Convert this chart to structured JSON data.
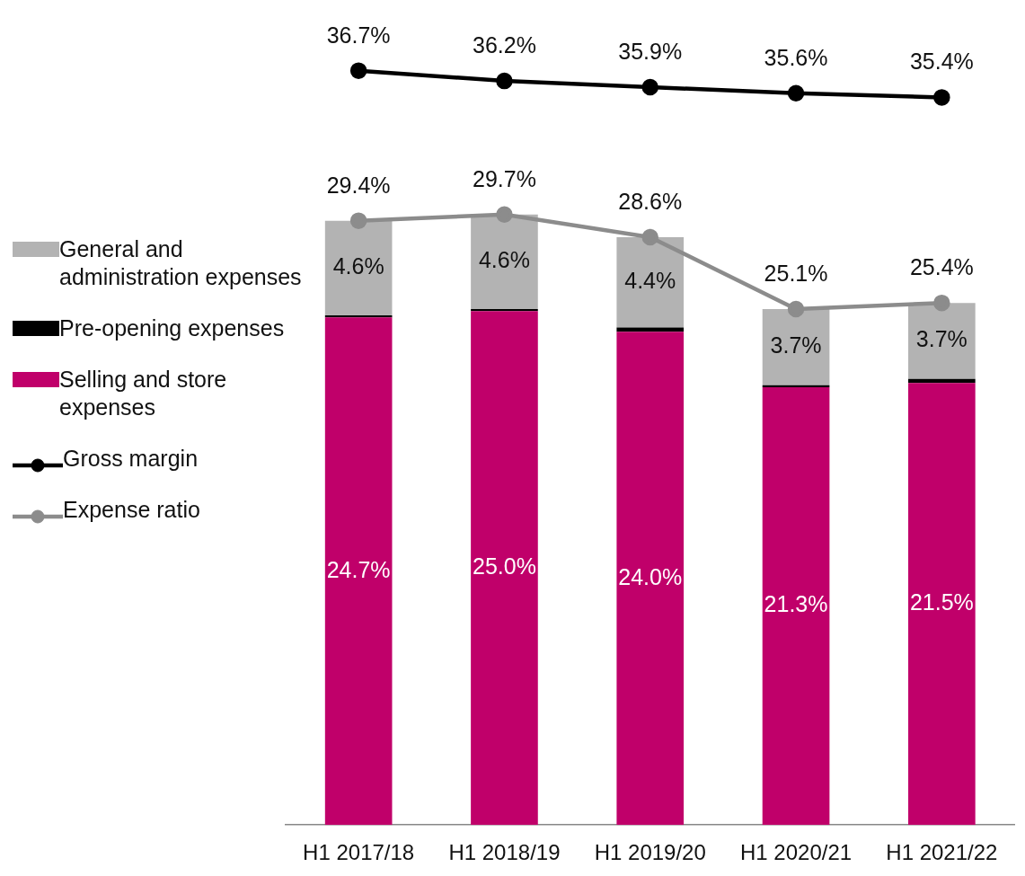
{
  "chart_data": {
    "type": "bar",
    "stacked": true,
    "legend": "left",
    "categories": [
      "H1 2017/18",
      "H1 2018/19",
      "H1 2019/20",
      "H1 2020/21",
      "H1 2021/22"
    ],
    "series": [
      {
        "name": "Selling and store expenses",
        "color": "#c0006a",
        "values": [
          24.7,
          25.0,
          24.0,
          21.3,
          21.5
        ],
        "value_labels": [
          "24.7%",
          "25.0%",
          "24.0%",
          "21.3%",
          "21.5%"
        ]
      },
      {
        "name": "Pre-opening expenses",
        "color": "#000000",
        "values": [
          0.1,
          0.1,
          0.2,
          0.1,
          0.2
        ]
      },
      {
        "name": "General and administration expenses",
        "color": "#b3b3b3",
        "values": [
          4.6,
          4.6,
          4.4,
          3.7,
          3.7
        ],
        "value_labels": [
          "4.6%",
          "4.6%",
          "4.4%",
          "3.7%",
          "3.7%"
        ]
      },
      {
        "name": "Gross margin",
        "type": "line",
        "color": "#000000",
        "values": [
          36.7,
          36.2,
          35.9,
          35.6,
          35.4
        ],
        "value_labels": [
          "36.7%",
          "36.2%",
          "35.9%",
          "35.6%",
          "35.4%"
        ]
      },
      {
        "name": "Expense ratio",
        "type": "line",
        "color": "#8c8c8c",
        "values": [
          29.4,
          29.7,
          28.6,
          25.1,
          25.4
        ],
        "value_labels": [
          "29.4%",
          "29.7%",
          "28.6%",
          "25.1%",
          "25.4%"
        ]
      }
    ],
    "marker": "circle"
  }
}
